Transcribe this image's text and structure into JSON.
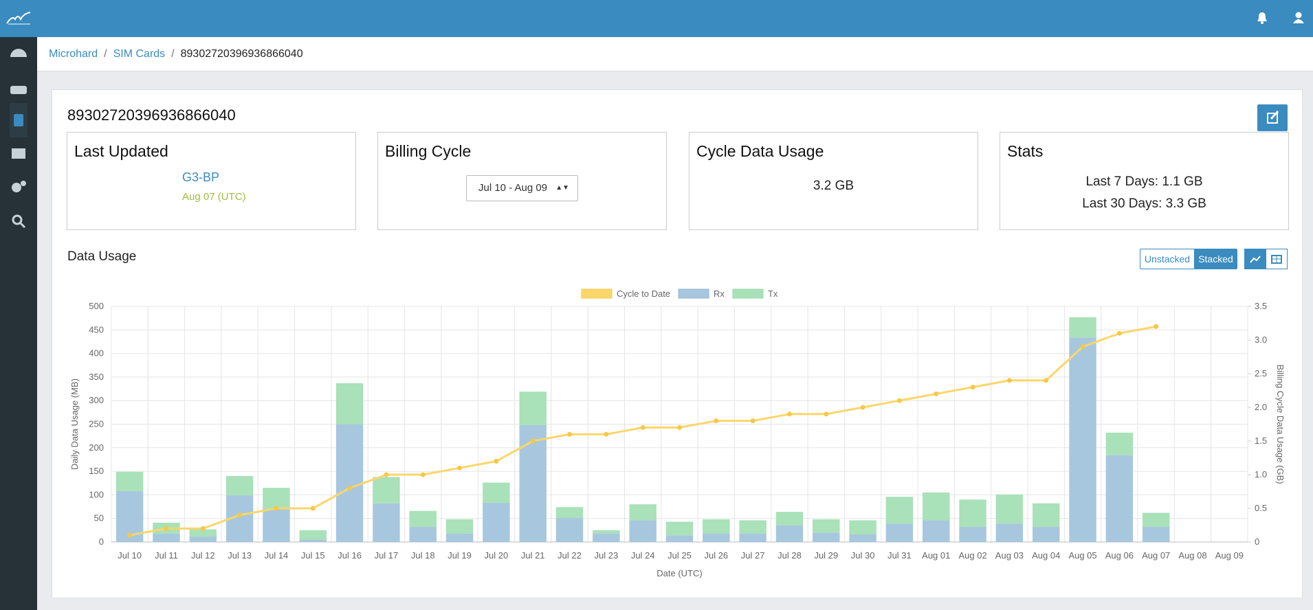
{
  "breadcrumb": [
    "Microhard",
    "SIM Cards",
    "89302720396936866040"
  ],
  "card_title": "89302720396936866040",
  "boxes": {
    "last_updated": {
      "title": "Last Updated",
      "device": "G3-BP",
      "date": "Aug 07 (UTC)"
    },
    "billing_cycle": {
      "title": "Billing Cycle",
      "selected": "Jul 10 - Aug 09"
    },
    "cycle_usage": {
      "title": "Cycle Data Usage",
      "value": "3.2 GB"
    },
    "stats": {
      "title": "Stats",
      "last7": "Last 7 Days: 1.1 GB",
      "last30": "Last 30 Days: 3.3 GB"
    }
  },
  "section_title": "Data Usage",
  "buttons": [
    "Unstacked",
    "Stacked"
  ],
  "chart_data": {
    "type": "bar",
    "stacked": true,
    "xlabel": "Date (UTC)",
    "ylabel": "Daily Data Usage (MB)",
    "y2label": "Billing Cycle Data Usage (GB)",
    "categories": [
      "Jul 10",
      "Jul 11",
      "Jul 12",
      "Jul 13",
      "Jul 14",
      "Jul 15",
      "Jul 16",
      "Jul 17",
      "Jul 18",
      "Jul 19",
      "Jul 20",
      "Jul 21",
      "Jul 22",
      "Jul 23",
      "Jul 24",
      "Jul 25",
      "Jul 26",
      "Jul 27",
      "Jul 28",
      "Jul 29",
      "Jul 30",
      "Jul 31",
      "Aug 01",
      "Aug 02",
      "Aug 03",
      "Aug 04",
      "Aug 05",
      "Aug 06",
      "Aug 07",
      "Aug 08",
      "Aug 09"
    ],
    "series": [
      {
        "name": "Cycle to Date",
        "type": "line",
        "axis": "y2",
        "color": "#fbd66a",
        "values": [
          0.1,
          0.2,
          0.2,
          0.4,
          0.5,
          0.5,
          0.8,
          1.0,
          1.0,
          1.1,
          1.2,
          1.5,
          1.6,
          1.6,
          1.7,
          1.7,
          1.8,
          1.8,
          1.9,
          1.9,
          2.0,
          2.1,
          2.2,
          2.3,
          2.4,
          2.4,
          2.9,
          3.1,
          3.2,
          null,
          null
        ]
      },
      {
        "name": "Rx",
        "color": "#a7c7de",
        "values": [
          108,
          18,
          11,
          99,
          71,
          5,
          250,
          82,
          32,
          18,
          83,
          248,
          51,
          18,
          46,
          14,
          18,
          18,
          35,
          20,
          16,
          39,
          46,
          32,
          39,
          32,
          434,
          184,
          32,
          null,
          null
        ]
      },
      {
        "name": "Tx",
        "color": "#a9e1b9",
        "values": [
          41,
          23,
          16,
          41,
          44,
          20,
          87,
          56,
          34,
          30,
          43,
          71,
          23,
          7,
          34,
          29,
          30,
          28,
          29,
          28,
          30,
          57,
          59,
          58,
          62,
          50,
          43,
          48,
          30,
          null,
          null
        ]
      }
    ],
    "ylim": [
      0,
      500
    ],
    "yticks": [
      0,
      50,
      100,
      150,
      200,
      250,
      300,
      350,
      400,
      450,
      500
    ],
    "y2lim": [
      0,
      3.5
    ],
    "y2ticks": [
      0,
      0.5,
      {
        "value": 1,
        "label": "1.0"
      },
      1.5,
      {
        "value": 2,
        "label": "2.0"
      },
      2.5,
      {
        "value": 3,
        "label": "3.0"
      },
      3.5
    ],
    "grid": true,
    "legend": "top"
  }
}
